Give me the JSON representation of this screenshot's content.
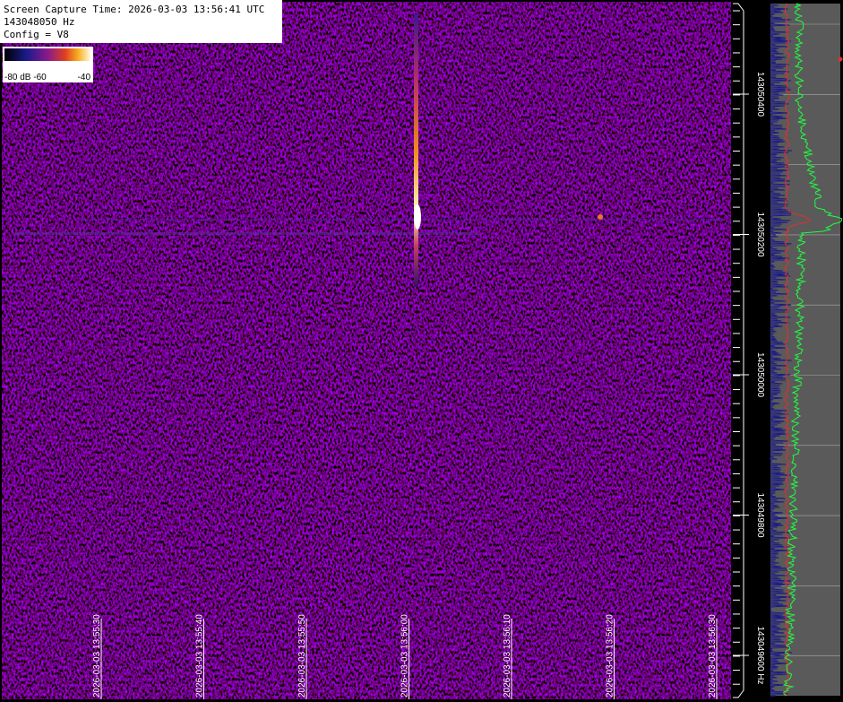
{
  "header": {
    "lines": [
      "Screen Capture Time: 2026-03-03 13:56:41 UTC",
      "143048050 Hz",
      "Config = V8"
    ]
  },
  "colorbar": {
    "labels": [
      "-80 dB -60",
      "-40"
    ]
  },
  "time_axis": {
    "labels": [
      "2026-03-03 13:55:30",
      "2026-03-03 13:55:40",
      "2026-03-03 13:55:50",
      "2026-03-03 13:56:00",
      "2026-03-03 13:56:10",
      "2026-03-03 13:56:20",
      "2026-03-03 13:56:30"
    ]
  },
  "freq_axis": {
    "labels": [
      "143050400",
      "143050200",
      "143050000",
      "143049800",
      "143049600 Hz"
    ]
  }
}
